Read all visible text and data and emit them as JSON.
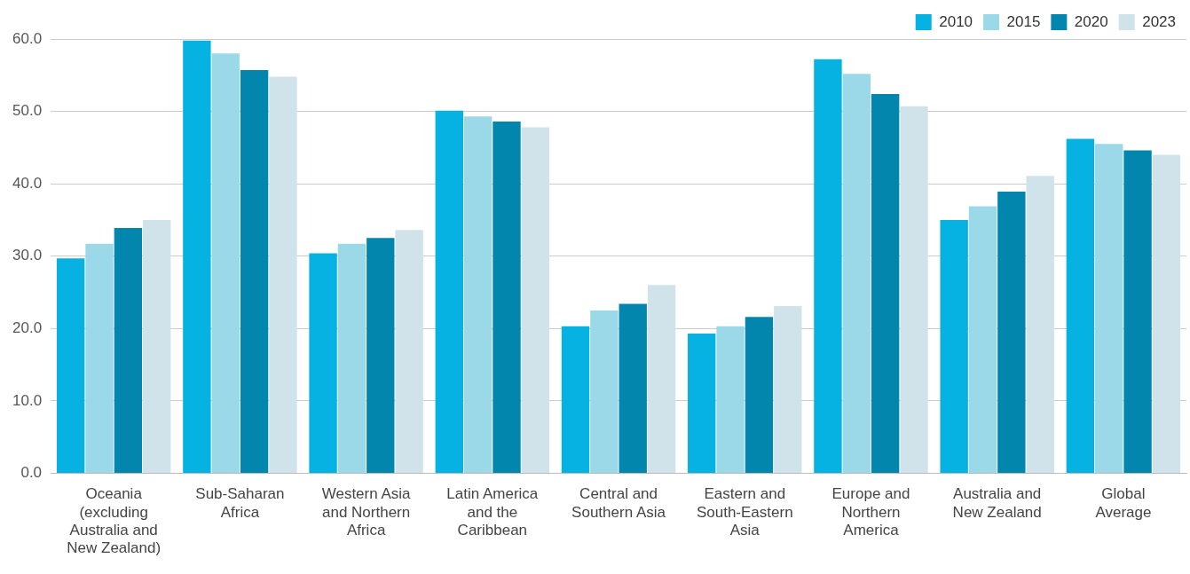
{
  "chart_data": {
    "type": "bar",
    "categories": [
      "Oceania (excluding Australia and New Zealand)",
      "Sub-Saharan Africa",
      "Western Asia and Northern Africa",
      "Latin America and the Caribbean",
      "Central and Southern Asia",
      "Eastern and South-Eastern Asia",
      "Europe and Northern America",
      "Australia and New Zealand",
      "Global Average"
    ],
    "series": [
      {
        "name": "2010",
        "color": "#05b2e1",
        "values": [
          29.7,
          59.8,
          30.4,
          50.1,
          20.3,
          19.3,
          57.2,
          35.0,
          46.2
        ]
      },
      {
        "name": "2015",
        "color": "#9bd9e8",
        "values": [
          31.7,
          58.0,
          31.7,
          49.3,
          22.5,
          20.3,
          55.2,
          36.9,
          45.5
        ]
      },
      {
        "name": "2020",
        "color": "#0386ad",
        "values": [
          33.9,
          55.7,
          32.5,
          48.6,
          23.4,
          21.6,
          52.4,
          38.9,
          44.6
        ]
      },
      {
        "name": "2023",
        "color": "#d0e3eb",
        "values": [
          35.0,
          54.8,
          33.6,
          47.8,
          26.0,
          23.1,
          50.7,
          41.1,
          44.0
        ]
      }
    ],
    "ylim": [
      0,
      60
    ],
    "yticks": [
      {
        "value": 0,
        "label": "0.0"
      },
      {
        "value": 10,
        "label": "10.0"
      },
      {
        "value": 20,
        "label": "20.0"
      },
      {
        "value": 30,
        "label": "30.0"
      },
      {
        "value": 40,
        "label": "40.0"
      },
      {
        "value": 50,
        "label": "50.0"
      },
      {
        "value": 60,
        "label": "60.0"
      }
    ],
    "grid": "y",
    "legend": "top right"
  }
}
